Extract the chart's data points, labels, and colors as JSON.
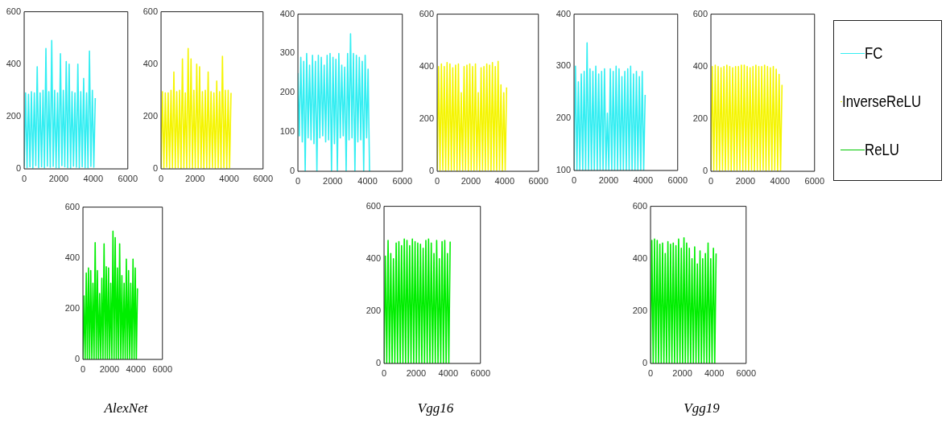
{
  "chart_data": [
    {
      "type": "line",
      "xlim": [
        0,
        6000
      ],
      "xticks": [
        0,
        2000,
        4000,
        6000
      ],
      "ylim": [
        0,
        600
      ],
      "yticks": [
        0,
        200,
        400,
        600
      ],
      "marker": "none",
      "legend": false,
      "x": [
        0,
        84,
        168,
        252,
        336,
        420,
        504,
        588,
        672,
        756,
        840,
        924,
        1008,
        1092,
        1176,
        1260,
        1344,
        1428,
        1512,
        1596,
        1680,
        1764,
        1848,
        1932,
        2016,
        2100,
        2184,
        2268,
        2352,
        2436,
        2520,
        2604,
        2688,
        2772,
        2856,
        2940,
        3024,
        3108,
        3192,
        3276,
        3360,
        3444,
        3528,
        3612,
        3696,
        3780,
        3864,
        3948,
        4032,
        4116
      ],
      "series": [
        {
          "color": "#33eef2",
          "values": [
            10,
            290,
            5,
            285,
            8,
            295,
            3,
            290,
            12,
            390,
            5,
            290,
            8,
            300,
            4,
            460,
            10,
            295,
            6,
            490,
            9,
            300,
            5,
            290,
            4,
            440,
            12,
            300,
            8,
            410,
            5,
            400,
            3,
            295,
            10,
            290,
            6,
            400,
            4,
            295,
            8,
            345,
            5,
            290,
            4,
            450,
            9,
            300,
            6,
            270
          ]
        }
      ]
    },
    {
      "type": "line",
      "xlim": [
        0,
        6000
      ],
      "xticks": [
        0,
        2000,
        4000,
        6000
      ],
      "ylim": [
        0,
        600
      ],
      "yticks": [
        0,
        200,
        400,
        600
      ],
      "marker": "none",
      "legend": false,
      "x": [
        0,
        84,
        168,
        252,
        336,
        420,
        504,
        588,
        672,
        756,
        840,
        924,
        1008,
        1092,
        1176,
        1260,
        1344,
        1428,
        1512,
        1596,
        1680,
        1764,
        1848,
        1932,
        2016,
        2100,
        2184,
        2268,
        2352,
        2436,
        2520,
        2604,
        2688,
        2772,
        2856,
        2940,
        3024,
        3108,
        3192,
        3276,
        3360,
        3444,
        3528,
        3612,
        3696,
        3780,
        3864,
        3948,
        4032,
        4116
      ],
      "series": [
        {
          "color": "#f5f500",
          "values": [
            5,
            295,
            3,
            290,
            6,
            290,
            2,
            300,
            4,
            370,
            3,
            295,
            5,
            300,
            2,
            420,
            4,
            290,
            3,
            460,
            5,
            420,
            2,
            300,
            4,
            400,
            3,
            390,
            5,
            295,
            2,
            300,
            4,
            370,
            3,
            295,
            5,
            290,
            2,
            335,
            4,
            295,
            3,
            430,
            5,
            300,
            2,
            300,
            5,
            290
          ]
        }
      ]
    },
    {
      "type": "line",
      "xlim": [
        0,
        6000
      ],
      "xticks": [
        0,
        2000,
        4000,
        6000
      ],
      "ylim": [
        0,
        400
      ],
      "yticks": [
        0,
        100,
        200,
        300,
        400
      ],
      "marker": "none",
      "legend": false,
      "x": [
        0,
        84,
        168,
        252,
        336,
        420,
        504,
        588,
        672,
        756,
        840,
        924,
        1008,
        1092,
        1176,
        1260,
        1344,
        1428,
        1512,
        1596,
        1680,
        1764,
        1848,
        1932,
        2016,
        2100,
        2184,
        2268,
        2352,
        2436,
        2520,
        2604,
        2688,
        2772,
        2856,
        2940,
        3024,
        3108,
        3192,
        3276,
        3360,
        3444,
        3528,
        3612,
        3696,
        3780,
        3864,
        3948,
        4032,
        4116
      ],
      "series": [
        {
          "color": "#33eef2",
          "values": [
            250,
            90,
            290,
            75,
            280,
            0,
            300,
            85,
            270,
            80,
            295,
            70,
            280,
            0,
            295,
            85,
            290,
            90,
            270,
            75,
            295,
            80,
            300,
            0,
            290,
            70,
            285,
            0,
            300,
            85,
            270,
            90,
            265,
            0,
            300,
            80,
            350,
            85,
            300,
            0,
            295,
            75,
            290,
            80,
            280,
            0,
            295,
            85,
            260,
            0
          ]
        }
      ]
    },
    {
      "type": "line",
      "xlim": [
        0,
        6000
      ],
      "xticks": [
        0,
        2000,
        4000,
        6000
      ],
      "ylim": [
        0,
        600
      ],
      "yticks": [
        0,
        200,
        400,
        600
      ],
      "marker": "none",
      "legend": false,
      "x": [
        0,
        84,
        168,
        252,
        336,
        420,
        504,
        588,
        672,
        756,
        840,
        924,
        1008,
        1092,
        1176,
        1260,
        1344,
        1428,
        1512,
        1596,
        1680,
        1764,
        1848,
        1932,
        2016,
        2100,
        2184,
        2268,
        2352,
        2436,
        2520,
        2604,
        2688,
        2772,
        2856,
        2940,
        3024,
        3108,
        3192,
        3276,
        3360,
        3444,
        3528,
        3612,
        3696,
        3780,
        3864,
        3948,
        4032,
        4116
      ],
      "series": [
        {
          "color": "#f5f500",
          "values": [
            5,
            400,
            3,
            410,
            5,
            400,
            2,
            415,
            4,
            410,
            3,
            395,
            5,
            405,
            2,
            410,
            4,
            300,
            3,
            400,
            5,
            405,
            2,
            410,
            4,
            400,
            3,
            410,
            5,
            300,
            2,
            395,
            4,
            400,
            3,
            410,
            5,
            405,
            2,
            415,
            4,
            400,
            3,
            420,
            5,
            330,
            2,
            300,
            5,
            320
          ]
        }
      ]
    },
    {
      "type": "line",
      "xlim": [
        0,
        6000
      ],
      "xticks": [
        0,
        2000,
        4000,
        6000
      ],
      "ylim": [
        100,
        400
      ],
      "yticks": [
        100,
        200,
        300,
        400
      ],
      "marker": "none",
      "legend": false,
      "x": [
        0,
        84,
        168,
        252,
        336,
        420,
        504,
        588,
        672,
        756,
        840,
        924,
        1008,
        1092,
        1176,
        1260,
        1344,
        1428,
        1512,
        1596,
        1680,
        1764,
        1848,
        1932,
        2016,
        2100,
        2184,
        2268,
        2352,
        2436,
        2520,
        2604,
        2688,
        2772,
        2856,
        2940,
        3024,
        3108,
        3192,
        3276,
        3360,
        3444,
        3528,
        3612,
        3696,
        3780,
        3864,
        3948,
        4032,
        4116
      ],
      "series": [
        {
          "color": "#33eef2",
          "values": [
            100,
            300,
            100,
            270,
            100,
            285,
            100,
            290,
            100,
            345,
            100,
            295,
            100,
            290,
            100,
            300,
            100,
            285,
            100,
            290,
            100,
            295,
            100,
            210,
            100,
            295,
            100,
            290,
            100,
            300,
            100,
            295,
            100,
            280,
            100,
            290,
            100,
            295,
            100,
            300,
            100,
            285,
            100,
            290,
            100,
            280,
            100,
            290,
            100,
            245
          ]
        }
      ]
    },
    {
      "type": "line",
      "xlim": [
        0,
        6000
      ],
      "xticks": [
        0,
        2000,
        4000,
        6000
      ],
      "ylim": [
        0,
        600
      ],
      "yticks": [
        0,
        200,
        400,
        600
      ],
      "marker": "none",
      "legend": false,
      "x": [
        0,
        84,
        168,
        252,
        336,
        420,
        504,
        588,
        672,
        756,
        840,
        924,
        1008,
        1092,
        1176,
        1260,
        1344,
        1428,
        1512,
        1596,
        1680,
        1764,
        1848,
        1932,
        2016,
        2100,
        2184,
        2268,
        2352,
        2436,
        2520,
        2604,
        2688,
        2772,
        2856,
        2940,
        3024,
        3108,
        3192,
        3276,
        3360,
        3444,
        3528,
        3612,
        3696,
        3780,
        3864,
        3948,
        4032,
        4116
      ],
      "series": [
        {
          "color": "#f5f500",
          "values": [
            5,
            400,
            3,
            405,
            5,
            400,
            2,
            395,
            4,
            400,
            3,
            405,
            5,
            400,
            2,
            395,
            4,
            400,
            3,
            400,
            5,
            405,
            2,
            405,
            4,
            400,
            3,
            395,
            5,
            400,
            2,
            405,
            4,
            400,
            3,
            400,
            5,
            405,
            2,
            400,
            4,
            395,
            3,
            400,
            5,
            390,
            2,
            370,
            4,
            330
          ]
        }
      ]
    },
    {
      "type": "other",
      "series": [
        {
          "name": "FC",
          "color": "#33eef2"
        },
        {
          "name": "InverseReLU",
          "color": "#f5f500"
        },
        {
          "name": "ReLU",
          "color": "#00c800"
        }
      ]
    },
    {
      "type": "line",
      "xlim": [
        0,
        6000
      ],
      "xticks": [
        0,
        2000,
        4000,
        6000
      ],
      "ylim": [
        0,
        600
      ],
      "yticks": [
        0,
        200,
        400,
        600
      ],
      "marker": "none",
      "legend": false,
      "annotations": [
        "AlexNet"
      ],
      "x": [
        0,
        84,
        168,
        252,
        336,
        420,
        504,
        588,
        672,
        756,
        840,
        924,
        1008,
        1092,
        1176,
        1260,
        1344,
        1428,
        1512,
        1596,
        1680,
        1764,
        1848,
        1932,
        2016,
        2100,
        2184,
        2268,
        2352,
        2436,
        2520,
        2604,
        2688,
        2772,
        2856,
        2940,
        3024,
        3108,
        3192,
        3276,
        3360,
        3444,
        3528,
        3612,
        3696,
        3780,
        3864,
        3948,
        4032,
        4116
      ],
      "series": [
        {
          "color": "#00ee00",
          "values": [
            0,
            250,
            0,
            340,
            0,
            360,
            0,
            350,
            0,
            300,
            0,
            460,
            0,
            350,
            0,
            260,
            0,
            320,
            0,
            455,
            0,
            365,
            0,
            360,
            0,
            300,
            0,
            505,
            0,
            480,
            0,
            360,
            0,
            455,
            0,
            330,
            0,
            300,
            0,
            395,
            0,
            350,
            0,
            300,
            0,
            395,
            0,
            360,
            0,
            280
          ]
        }
      ]
    },
    {
      "type": "line",
      "xlim": [
        0,
        6000
      ],
      "xticks": [
        0,
        2000,
        4000,
        6000
      ],
      "ylim": [
        0,
        600
      ],
      "yticks": [
        0,
        200,
        400,
        600
      ],
      "marker": "none",
      "legend": false,
      "annotations": [
        "Vgg16"
      ],
      "x": [
        0,
        84,
        168,
        252,
        336,
        420,
        504,
        588,
        672,
        756,
        840,
        924,
        1008,
        1092,
        1176,
        1260,
        1344,
        1428,
        1512,
        1596,
        1680,
        1764,
        1848,
        1932,
        2016,
        2100,
        2184,
        2268,
        2352,
        2436,
        2520,
        2604,
        2688,
        2772,
        2856,
        2940,
        3024,
        3108,
        3192,
        3276,
        3360,
        3444,
        3528,
        3612,
        3696,
        3780,
        3864,
        3948,
        4032,
        4116
      ],
      "series": [
        {
          "color": "#00ee00",
          "values": [
            0,
            410,
            0,
            470,
            0,
            420,
            0,
            400,
            0,
            460,
            0,
            465,
            0,
            450,
            0,
            475,
            0,
            470,
            0,
            450,
            0,
            475,
            0,
            465,
            0,
            460,
            0,
            455,
            0,
            440,
            0,
            470,
            0,
            475,
            0,
            460,
            0,
            420,
            0,
            470,
            0,
            400,
            0,
            465,
            0,
            470,
            0,
            420,
            0,
            465
          ]
        }
      ]
    },
    {
      "type": "line",
      "xlim": [
        0,
        6000
      ],
      "xticks": [
        0,
        2000,
        4000,
        6000
      ],
      "ylim": [
        0,
        600
      ],
      "yticks": [
        0,
        200,
        400,
        600
      ],
      "marker": "none",
      "legend": false,
      "annotations": [
        "Vgg19"
      ],
      "x": [
        0,
        84,
        168,
        252,
        336,
        420,
        504,
        588,
        672,
        756,
        840,
        924,
        1008,
        1092,
        1176,
        1260,
        1344,
        1428,
        1512,
        1596,
        1680,
        1764,
        1848,
        1932,
        2016,
        2100,
        2184,
        2268,
        2352,
        2436,
        2520,
        2604,
        2688,
        2772,
        2856,
        2940,
        3024,
        3108,
        3192,
        3276,
        3360,
        3444,
        3528,
        3612,
        3696,
        3780,
        3864,
        3948,
        4032,
        4116
      ],
      "series": [
        {
          "color": "#00ee00",
          "values": [
            0,
            470,
            0,
            475,
            0,
            470,
            0,
            455,
            0,
            460,
            0,
            420,
            0,
            465,
            0,
            455,
            0,
            460,
            0,
            450,
            0,
            475,
            0,
            440,
            0,
            480,
            0,
            460,
            0,
            440,
            0,
            400,
            0,
            445,
            0,
            380,
            0,
            430,
            0,
            400,
            0,
            420,
            0,
            460,
            0,
            400,
            0,
            440,
            0,
            420
          ]
        }
      ]
    }
  ]
}
